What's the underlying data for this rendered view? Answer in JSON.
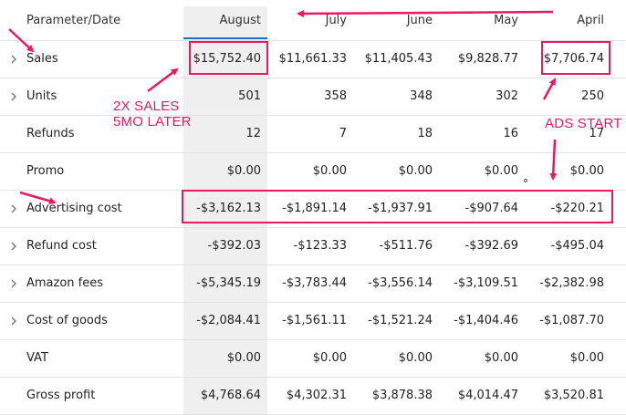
{
  "columns": {
    "parameter": "Parameter/Date",
    "dates": [
      "August",
      "July",
      "June",
      "May",
      "April"
    ]
  },
  "rows": [
    {
      "label": "Sales",
      "expandable": true,
      "values": [
        "$15,752.40",
        "$11,661.33",
        "$11,405.43",
        "$9,828.77",
        "$7,706.74"
      ]
    },
    {
      "label": "Units",
      "expandable": true,
      "values": [
        "501",
        "358",
        "348",
        "302",
        "250"
      ]
    },
    {
      "label": "Refunds",
      "expandable": false,
      "values": [
        "12",
        "7",
        "18",
        "16",
        "17"
      ]
    },
    {
      "label": "Promo",
      "expandable": false,
      "values": [
        "$0.00",
        "$0.00",
        "$0.00",
        "$0.00",
        "$0.00"
      ]
    },
    {
      "label": "Advertising cost",
      "expandable": true,
      "values": [
        "-$3,162.13",
        "-$1,891.14",
        "-$1,937.91",
        "-$907.64",
        "-$220.21"
      ]
    },
    {
      "label": "Refund cost",
      "expandable": true,
      "values": [
        "-$392.03",
        "-$123.33",
        "-$511.76",
        "-$392.69",
        "-$495.04"
      ]
    },
    {
      "label": "Amazon fees",
      "expandable": true,
      "values": [
        "-$5,345.19",
        "-$3,783.44",
        "-$3,556.14",
        "-$3,109.51",
        "-$2,382.98"
      ]
    },
    {
      "label": "Cost of goods",
      "expandable": true,
      "values": [
        "-$2,084.41",
        "-$1,561.11",
        "-$1,521.24",
        "-$1,404.46",
        "-$1,087.70"
      ]
    },
    {
      "label": "VAT",
      "expandable": false,
      "values": [
        "$0.00",
        "$0.00",
        "$0.00",
        "$0.00",
        "$0.00"
      ]
    },
    {
      "label": "Gross profit",
      "expandable": false,
      "values": [
        "$4,768.64",
        "$4,302.31",
        "$3,878.38",
        "$4,014.47",
        "$3,520.81"
      ]
    }
  ],
  "annotations": {
    "sales_note_line1": "2X SALES",
    "sales_note_line2": "5MO LATER",
    "ads_note": "ADS START",
    "color": "#e8195e"
  },
  "theme": {
    "highlight_column_bg": "#efefef",
    "selected_underline": "#1a73c7"
  },
  "icons": {
    "expand": "chevron-right-icon"
  }
}
